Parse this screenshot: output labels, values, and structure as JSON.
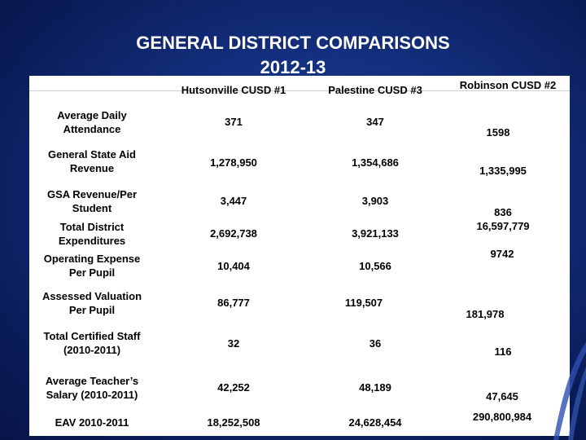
{
  "title": {
    "line1": "GENERAL DISTRICT COMPARISONS",
    "line2": "2012-13"
  },
  "columns": [
    "Hutsonville CUSD #1",
    "Palestine CUSD #3",
    "Robinson CUSD #2"
  ],
  "rows": [
    {
      "label": [
        "Average Daily",
        "Attendance"
      ],
      "values": [
        "371",
        "347",
        "1598"
      ]
    },
    {
      "label": [
        "General State Aid",
        "Revenue"
      ],
      "values": [
        "1,278,950",
        "1,354,686",
        "1,335,995"
      ]
    },
    {
      "label": [
        "GSA Revenue/Per",
        "Student"
      ],
      "values": [
        "3,447",
        "3,903",
        "836"
      ]
    },
    {
      "label": [
        "Total District",
        "Expenditures"
      ],
      "values": [
        "2,692,738",
        "3,921,133",
        "16,597,779"
      ]
    },
    {
      "label": [
        "Operating Expense",
        "Per Pupil"
      ],
      "values": [
        "10,404",
        "10,566",
        "9742"
      ]
    },
    {
      "label": [
        "Assessed Valuation",
        "Per Pupil"
      ],
      "values": [
        "86,777",
        "119,507",
        "181,978"
      ]
    },
    {
      "label": [
        "Total Certified Staff",
        "(2010-2011)"
      ],
      "values": [
        "32",
        "36",
        "116"
      ]
    },
    {
      "label": [
        "Average Teacher’s",
        "Salary (2010-2011)"
      ],
      "values": [
        "42,252",
        "48,189",
        "47,645"
      ]
    },
    {
      "label": [
        "EAV 2010-2011"
      ],
      "values": [
        "18,252,508",
        "24,628,454",
        "290,800,984"
      ]
    }
  ]
}
